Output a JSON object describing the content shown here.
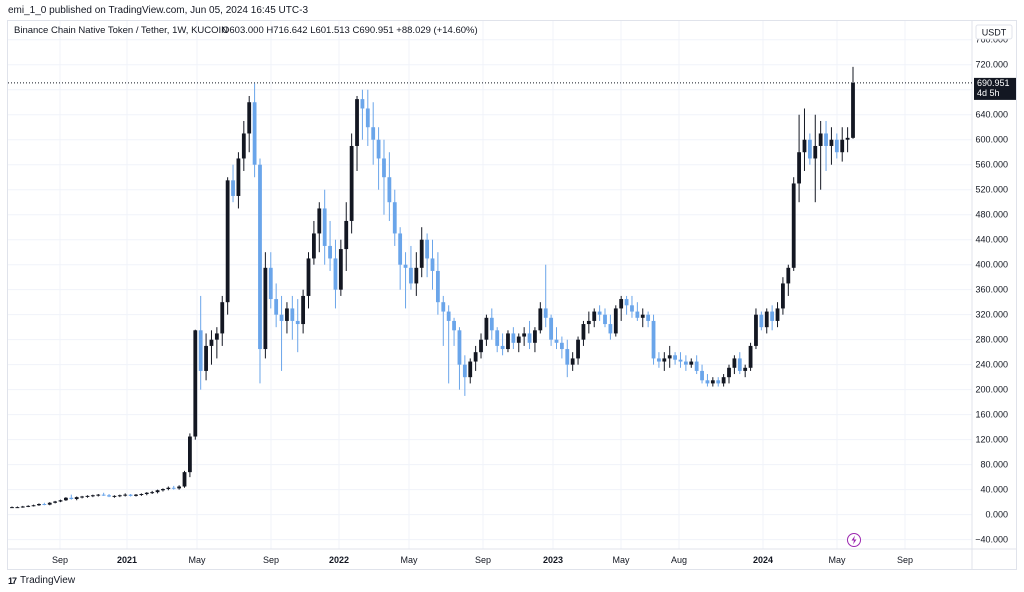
{
  "header": {
    "published": "emi_1_0 published on TradingView.com, Jun 05, 2024 16:45 UTC-3"
  },
  "legend": {
    "symbol": "Binance Chain Native Token / Tether, 1W, KUCOIN",
    "ohlc": "O603.000  H716.642  L601.513  C690.951  +88.029 (+14.60%)"
  },
  "price_axis": {
    "currency": "USDT",
    "ticks": [
      "760.000",
      "720.000",
      "680.000",
      "640.000",
      "600.000",
      "560.000",
      "520.000",
      "480.000",
      "440.000",
      "400.000",
      "360.000",
      "320.000",
      "280.000",
      "240.000",
      "200.000",
      "160.000",
      "120.000",
      "80.000",
      "40.000",
      "0.000",
      "−40.000"
    ],
    "last_price_label": "690.951",
    "countdown": "4d 5h"
  },
  "time_axis": {
    "labels": [
      "Sep",
      "2021",
      "May",
      "Sep",
      "2022",
      "May",
      "Sep",
      "2023",
      "May",
      "Aug",
      "2024",
      "May",
      "Sep"
    ]
  },
  "footer": {
    "brand": "TradingView",
    "logo": "17"
  },
  "colors": {
    "up": "#131722",
    "down": "#6aa5ea",
    "grid": "#f0f3fa",
    "border": "#e0e3eb",
    "badge": "#131722",
    "bolt": "#9c27b0"
  },
  "chart_data": {
    "type": "candlestick",
    "title": "Binance Chain Native Token / Tether, 1W, KUCOIN",
    "interval": "1W",
    "ylim": [
      -55,
      790
    ],
    "y_ticks": [
      -40,
      0,
      40,
      80,
      120,
      160,
      200,
      240,
      280,
      320,
      360,
      400,
      440,
      480,
      520,
      560,
      600,
      640,
      680,
      720,
      760
    ],
    "grid": true,
    "last_price": 690.951,
    "candles": [
      [
        12,
        13,
        11,
        12
      ],
      [
        12,
        13,
        11,
        12
      ],
      [
        12,
        14,
        11,
        13
      ],
      [
        13,
        15,
        12,
        14
      ],
      [
        14,
        16,
        13,
        15
      ],
      [
        15,
        18,
        14,
        17
      ],
      [
        17,
        19,
        15,
        16
      ],
      [
        16,
        20,
        15,
        19
      ],
      [
        19,
        22,
        18,
        21
      ],
      [
        21,
        24,
        20,
        23
      ],
      [
        23,
        28,
        22,
        27
      ],
      [
        27,
        32,
        24,
        25
      ],
      [
        25,
        29,
        23,
        28
      ],
      [
        28,
        30,
        26,
        29
      ],
      [
        29,
        31,
        27,
        30
      ],
      [
        30,
        32,
        28,
        31
      ],
      [
        31,
        33,
        29,
        32
      ],
      [
        32,
        35,
        30,
        31
      ],
      [
        31,
        33,
        28,
        29
      ],
      [
        29,
        31,
        27,
        30
      ],
      [
        30,
        32,
        28,
        31
      ],
      [
        31,
        34,
        29,
        32
      ],
      [
        32,
        33,
        29,
        30
      ],
      [
        30,
        33,
        29,
        32
      ],
      [
        32,
        34,
        30,
        33
      ],
      [
        33,
        36,
        31,
        35
      ],
      [
        35,
        38,
        33,
        36
      ],
      [
        36,
        40,
        34,
        39
      ],
      [
        39,
        42,
        37,
        41
      ],
      [
        41,
        45,
        39,
        43
      ],
      [
        43,
        46,
        40,
        42
      ],
      [
        42,
        47,
        40,
        45
      ],
      [
        45,
        70,
        43,
        68
      ],
      [
        68,
        130,
        60,
        125
      ],
      [
        125,
        296,
        120,
        295
      ],
      [
        295,
        350,
        200,
        230
      ],
      [
        230,
        290,
        215,
        270
      ],
      [
        270,
        295,
        240,
        280
      ],
      [
        280,
        300,
        250,
        290
      ],
      [
        290,
        350,
        270,
        340
      ],
      [
        340,
        540,
        320,
        535
      ],
      [
        535,
        560,
        500,
        510
      ],
      [
        510,
        580,
        490,
        570
      ],
      [
        570,
        630,
        550,
        610
      ],
      [
        610,
        670,
        580,
        660
      ],
      [
        660,
        690,
        540,
        560
      ],
      [
        560,
        570,
        210,
        265
      ],
      [
        265,
        420,
        250,
        395
      ],
      [
        395,
        420,
        330,
        345
      ],
      [
        345,
        370,
        300,
        320
      ],
      [
        320,
        350,
        230,
        310
      ],
      [
        310,
        340,
        290,
        330
      ],
      [
        330,
        350,
        280,
        310
      ],
      [
        310,
        345,
        260,
        305
      ],
      [
        305,
        360,
        290,
        350
      ],
      [
        350,
        420,
        330,
        410
      ],
      [
        410,
        470,
        400,
        450
      ],
      [
        450,
        500,
        420,
        490
      ],
      [
        490,
        520,
        400,
        430
      ],
      [
        430,
        470,
        390,
        410
      ],
      [
        410,
        440,
        330,
        360
      ],
      [
        360,
        440,
        350,
        425
      ],
      [
        425,
        500,
        390,
        470
      ],
      [
        470,
        610,
        450,
        590
      ],
      [
        590,
        670,
        550,
        665
      ],
      [
        665,
        680,
        600,
        650
      ],
      [
        650,
        680,
        590,
        620
      ],
      [
        620,
        660,
        560,
        600
      ],
      [
        600,
        620,
        520,
        570
      ],
      [
        570,
        600,
        480,
        540
      ],
      [
        540,
        580,
        470,
        500
      ],
      [
        500,
        520,
        430,
        450
      ],
      [
        450,
        460,
        360,
        400
      ],
      [
        400,
        420,
        330,
        395
      ],
      [
        395,
        430,
        360,
        370
      ],
      [
        370,
        420,
        350,
        395
      ],
      [
        395,
        460,
        380,
        440
      ],
      [
        440,
        450,
        380,
        410
      ],
      [
        410,
        440,
        360,
        390
      ],
      [
        390,
        420,
        320,
        340
      ],
      [
        340,
        350,
        270,
        325
      ],
      [
        325,
        335,
        210,
        310
      ],
      [
        310,
        315,
        270,
        295
      ],
      [
        295,
        300,
        200,
        240
      ],
      [
        240,
        255,
        190,
        220
      ],
      [
        220,
        250,
        210,
        245
      ],
      [
        245,
        270,
        230,
        260
      ],
      [
        260,
        290,
        250,
        280
      ],
      [
        280,
        320,
        270,
        315
      ],
      [
        315,
        330,
        280,
        295
      ],
      [
        295,
        300,
        260,
        270
      ],
      [
        270,
        290,
        255,
        265
      ],
      [
        265,
        295,
        260,
        290
      ],
      [
        290,
        300,
        265,
        275
      ],
      [
        275,
        290,
        260,
        285
      ],
      [
        285,
        300,
        270,
        290
      ],
      [
        290,
        310,
        265,
        275
      ],
      [
        275,
        300,
        260,
        295
      ],
      [
        295,
        340,
        290,
        330
      ],
      [
        330,
        400,
        300,
        315
      ],
      [
        315,
        320,
        270,
        280
      ],
      [
        280,
        300,
        265,
        275
      ],
      [
        275,
        285,
        250,
        265
      ],
      [
        265,
        280,
        220,
        240
      ],
      [
        240,
        260,
        230,
        250
      ],
      [
        250,
        285,
        240,
        280
      ],
      [
        280,
        310,
        270,
        305
      ],
      [
        305,
        325,
        290,
        310
      ],
      [
        310,
        330,
        300,
        325
      ],
      [
        325,
        335,
        310,
        320
      ],
      [
        320,
        330,
        300,
        305
      ],
      [
        305,
        320,
        280,
        290
      ],
      [
        290,
        335,
        285,
        330
      ],
      [
        330,
        350,
        310,
        345
      ],
      [
        345,
        350,
        320,
        335
      ],
      [
        335,
        350,
        315,
        325
      ],
      [
        325,
        340,
        310,
        315
      ],
      [
        315,
        330,
        300,
        320
      ],
      [
        320,
        325,
        300,
        310
      ],
      [
        310,
        320,
        240,
        250
      ],
      [
        250,
        260,
        235,
        245
      ],
      [
        245,
        260,
        230,
        250
      ],
      [
        250,
        270,
        235,
        255
      ],
      [
        255,
        260,
        240,
        248
      ],
      [
        248,
        260,
        235,
        245
      ],
      [
        245,
        255,
        230,
        240
      ],
      [
        240,
        250,
        235,
        245
      ],
      [
        245,
        255,
        225,
        230
      ],
      [
        230,
        240,
        210,
        215
      ],
      [
        215,
        225,
        205,
        210
      ],
      [
        210,
        220,
        205,
        215
      ],
      [
        215,
        220,
        205,
        210
      ],
      [
        210,
        225,
        205,
        220
      ],
      [
        220,
        240,
        210,
        235
      ],
      [
        235,
        255,
        225,
        250
      ],
      [
        250,
        260,
        225,
        230
      ],
      [
        230,
        240,
        220,
        235
      ],
      [
        235,
        275,
        230,
        270
      ],
      [
        270,
        330,
        265,
        320
      ],
      [
        320,
        325,
        295,
        300
      ],
      [
        300,
        330,
        290,
        325
      ],
      [
        325,
        335,
        295,
        310
      ],
      [
        310,
        340,
        300,
        330
      ],
      [
        330,
        380,
        320,
        370
      ],
      [
        370,
        400,
        350,
        395
      ],
      [
        395,
        540,
        390,
        530
      ],
      [
        530,
        640,
        500,
        580
      ],
      [
        580,
        650,
        550,
        600
      ],
      [
        600,
        610,
        560,
        570
      ],
      [
        570,
        640,
        500,
        590
      ],
      [
        590,
        630,
        520,
        610
      ],
      [
        610,
        630,
        550,
        590
      ],
      [
        590,
        620,
        560,
        600
      ],
      [
        600,
        610,
        570,
        580
      ],
      [
        580,
        620,
        565,
        600
      ],
      [
        600,
        620,
        580,
        603
      ],
      [
        603,
        716.642,
        601.513,
        690.951
      ]
    ]
  }
}
